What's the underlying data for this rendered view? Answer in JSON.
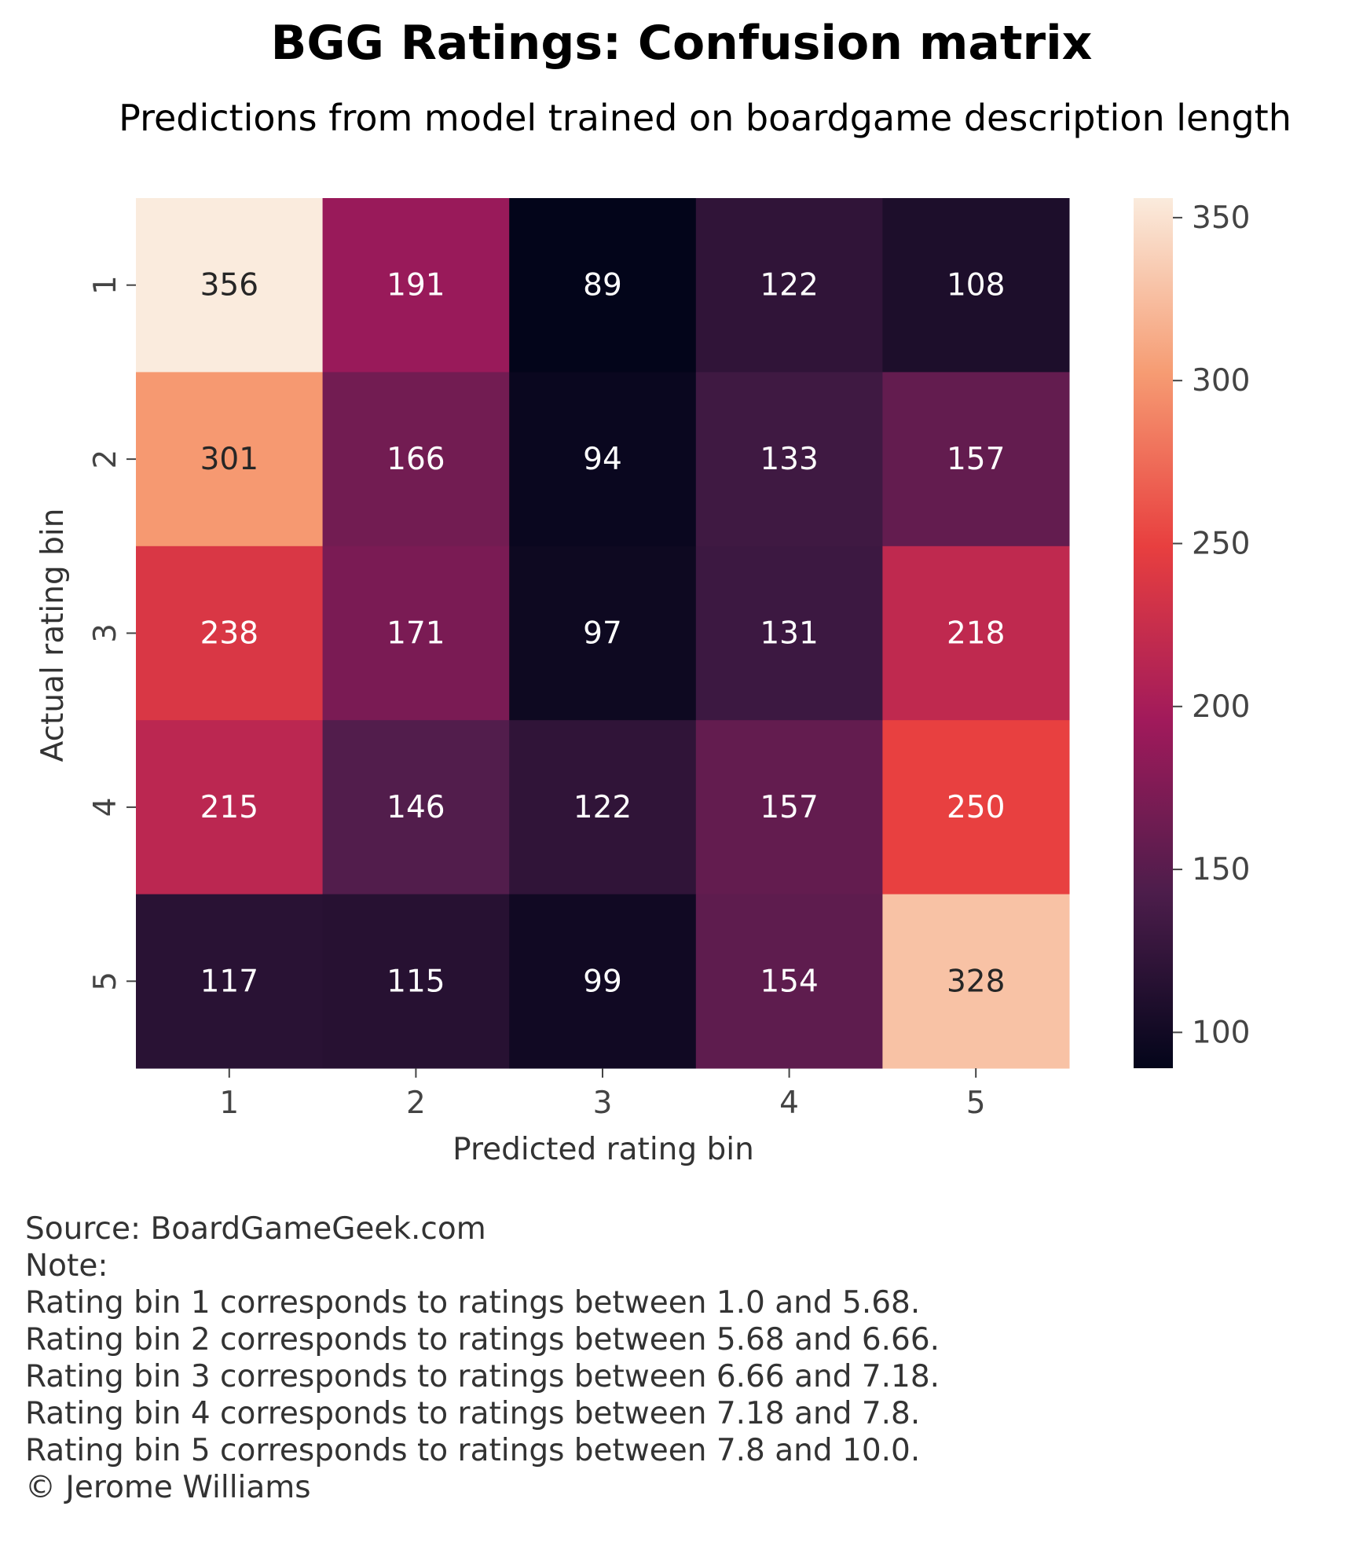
{
  "chart_data": {
    "type": "heatmap",
    "title": "BGG Ratings: Confusion matrix",
    "subtitle": "Predictions from model trained on boardgame description length",
    "xlabel": "Predicted rating bin",
    "ylabel": "Actual rating bin",
    "x_categories": [
      "1",
      "2",
      "3",
      "4",
      "5"
    ],
    "y_categories": [
      "1",
      "2",
      "3",
      "4",
      "5"
    ],
    "values": [
      [
        356,
        191,
        89,
        122,
        108
      ],
      [
        301,
        166,
        94,
        133,
        157
      ],
      [
        238,
        171,
        97,
        131,
        218
      ],
      [
        215,
        146,
        122,
        157,
        250
      ],
      [
        117,
        115,
        99,
        154,
        328
      ]
    ],
    "colorbar": {
      "range": [
        89,
        356
      ],
      "ticks": [
        100,
        150,
        200,
        250,
        300,
        350
      ],
      "colormap": "rocket",
      "stops": [
        "#03051A",
        "#4C1D4B",
        "#A11A5B",
        "#E83F3F",
        "#F69C73",
        "#FAEBDD"
      ]
    },
    "grid": false,
    "legend": "colorbar-right"
  },
  "footer": {
    "lines": [
      "Source: BoardGameGeek.com",
      "Note:",
      "Rating bin 1 corresponds to ratings between 1.0 and 5.68.",
      "Rating bin 2 corresponds to ratings between 5.68 and 6.66.",
      "Rating bin 3 corresponds to ratings between 6.66 and 7.18.",
      "Rating bin 4 corresponds to ratings between 7.18 and 7.8.",
      "Rating bin 5 corresponds to ratings between 7.8 and 10.0.",
      "© Jerome Williams"
    ]
  }
}
